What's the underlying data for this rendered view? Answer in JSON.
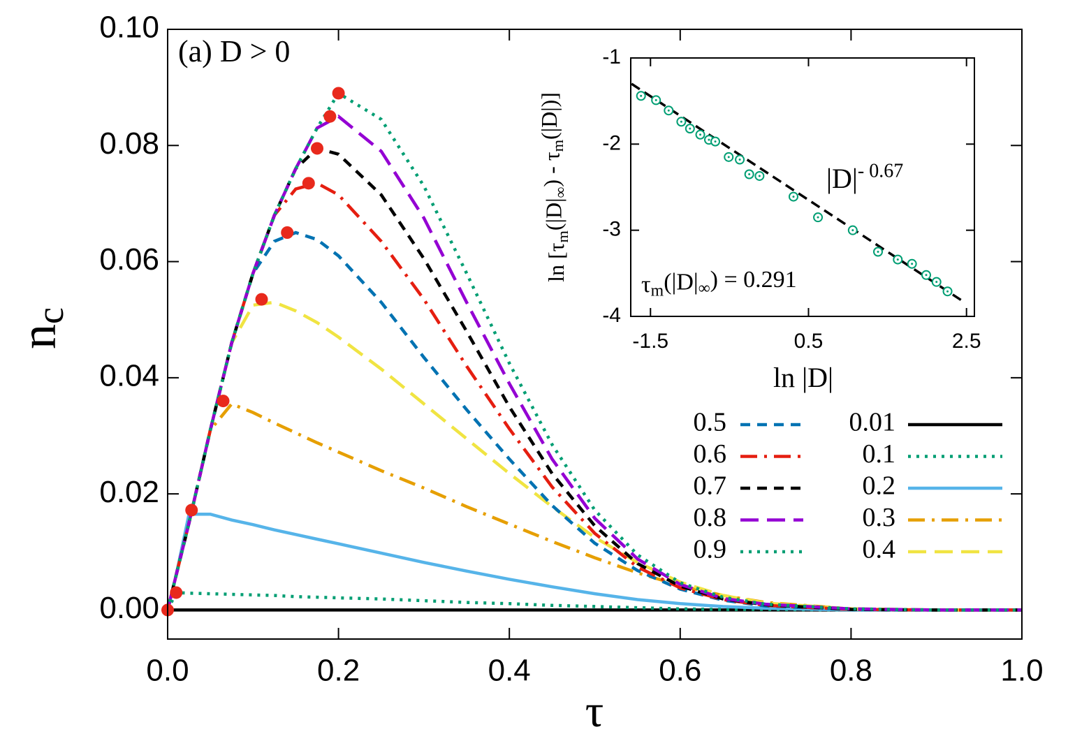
{
  "chart_data": [
    {
      "type": "line",
      "annotation": "(a) D > 0",
      "xlabel": "τ",
      "ylabel": "n",
      "ylabel_sub": "c",
      "x": [
        0,
        0.01,
        0.025,
        0.05,
        0.075,
        0.1,
        0.125,
        0.15,
        0.175,
        0.2,
        0.25,
        0.3,
        0.35,
        0.4,
        0.45,
        0.5,
        0.55,
        0.6,
        0.65,
        0.7,
        0.8,
        0.9,
        1.0
      ],
      "series": [
        {
          "name": "0.01",
          "color": "#000000",
          "dash": "solid",
          "values": [
            0,
            0,
            0,
            0,
            0,
            0,
            0,
            0,
            0,
            0,
            0,
            0,
            0,
            0,
            0,
            0,
            0,
            0,
            0,
            0,
            0,
            0,
            0
          ]
        },
        {
          "name": "0.1",
          "color": "#009e73",
          "dash": "dotted",
          "values": [
            0,
            0.003,
            0.0029,
            0.0028,
            0.0027,
            0.0026,
            0.0025,
            0.0023,
            0.0022,
            0.0021,
            0.0019,
            0.0016,
            0.0013,
            0.0011,
            0.0008,
            0.0006,
            0.0004,
            0.0002,
            0.0001,
            0.0001,
            0,
            0,
            0
          ]
        },
        {
          "name": "0.2",
          "color": "#56b4e9",
          "dash": "solid",
          "values": [
            0,
            0.006,
            0.0165,
            0.0165,
            0.0155,
            0.0147,
            0.0138,
            0.013,
            0.0122,
            0.0114,
            0.0098,
            0.0082,
            0.0067,
            0.0053,
            0.004,
            0.0028,
            0.0018,
            0.0011,
            0.0006,
            0.0003,
            0,
            0,
            0
          ]
        },
        {
          "name": "0.3",
          "color": "#e69f00",
          "dash": "dashdot",
          "values": [
            0,
            0.006,
            0.015,
            0.031,
            0.0355,
            0.034,
            0.0322,
            0.0305,
            0.0288,
            0.0272,
            0.024,
            0.021,
            0.0178,
            0.0148,
            0.0118,
            0.009,
            0.0064,
            0.0042,
            0.0025,
            0.0013,
            0.0002,
            0,
            0
          ]
        },
        {
          "name": "0.4",
          "color": "#f0e442",
          "dash": "longdash",
          "values": [
            0,
            0.006,
            0.015,
            0.031,
            0.046,
            0.0525,
            0.053,
            0.0515,
            0.0495,
            0.047,
            0.0415,
            0.0355,
            0.0295,
            0.0235,
            0.0178,
            0.0125,
            0.0082,
            0.0048,
            0.0025,
            0.0012,
            0.0002,
            0,
            0
          ]
        },
        {
          "name": "0.5",
          "color": "#0072b2",
          "dash": "dashed",
          "values": [
            0,
            0.006,
            0.015,
            0.031,
            0.046,
            0.058,
            0.0635,
            0.065,
            0.0638,
            0.061,
            0.053,
            0.0435,
            0.0345,
            0.026,
            0.018,
            0.0115,
            0.0068,
            0.0036,
            0.0017,
            0.0007,
            0.0001,
            0,
            0
          ]
        },
        {
          "name": "0.6",
          "color": "#e51e10",
          "dash": "dashdot",
          "values": [
            0,
            0.006,
            0.015,
            0.031,
            0.046,
            0.058,
            0.068,
            0.0725,
            0.0735,
            0.0715,
            0.0635,
            0.0535,
            0.042,
            0.0312,
            0.0212,
            0.0132,
            0.0074,
            0.0038,
            0.0018,
            0.0008,
            0.0001,
            0,
            0
          ]
        },
        {
          "name": "0.7",
          "color": "#000000",
          "dash": "dashed",
          "values": [
            0,
            0.006,
            0.015,
            0.031,
            0.046,
            0.058,
            0.068,
            0.076,
            0.0795,
            0.0785,
            0.0715,
            0.0605,
            0.048,
            0.035,
            0.0235,
            0.0145,
            0.008,
            0.0041,
            0.0019,
            0.0009,
            0.0001,
            0,
            0
          ]
        },
        {
          "name": "0.8",
          "color": "#9400d3",
          "dash": "longdash",
          "values": [
            0,
            0.006,
            0.015,
            0.031,
            0.046,
            0.058,
            0.068,
            0.076,
            0.083,
            0.085,
            0.079,
            0.0675,
            0.053,
            0.039,
            0.026,
            0.0158,
            0.0088,
            0.0044,
            0.002,
            0.001,
            0.0002,
            0,
            0
          ]
        },
        {
          "name": "0.9",
          "color": "#009e73",
          "dash": "dotted",
          "values": [
            0,
            0.006,
            0.015,
            0.031,
            0.046,
            0.058,
            0.068,
            0.076,
            0.083,
            0.089,
            0.0845,
            0.073,
            0.058,
            0.0425,
            0.0285,
            0.0172,
            0.0095,
            0.0047,
            0.0022,
            0.001,
            0.0002,
            0,
            0
          ]
        }
      ],
      "peaks": {
        "color": "#e8291c",
        "x": [
          0,
          0.01,
          0.028,
          0.065,
          0.11,
          0.14,
          0.165,
          0.175,
          0.19,
          0.2
        ],
        "y": [
          0,
          0.003,
          0.0172,
          0.036,
          0.0535,
          0.065,
          0.0735,
          0.0795,
          0.085,
          0.089
        ]
      },
      "xlim": [
        0,
        1
      ],
      "ylim": [
        -0.005,
        0.1
      ],
      "xticks": [
        {
          "value": 0,
          "label": "0.0"
        },
        0.2,
        0.4,
        0.6,
        0.8,
        {
          "value": 1,
          "label": "1.0"
        }
      ],
      "yticks": [
        {
          "value": 0,
          "label": "0.00"
        },
        0.02,
        0.04,
        0.06,
        0.08,
        {
          "value": 0.1,
          "label": "0.10"
        }
      ],
      "legend": "lower right"
    },
    {
      "type": "scatter",
      "xlabel": "ln |D|",
      "ylabel_parts": [
        "ln [τ",
        "m",
        "(|D|",
        "∞",
        ") - τ",
        "m",
        "(|D|)]"
      ],
      "annotation_parts": [
        "τ",
        "m",
        "(|D|",
        "∞",
        ") = 0.291"
      ],
      "fit_label_parts": [
        "|D|",
        "- 0.67"
      ],
      "color": "#009e73",
      "x": [
        -1.62,
        -1.43,
        -1.27,
        -1.11,
        -1.0,
        -0.87,
        -0.76,
        -0.68,
        -0.51,
        -0.37,
        -0.25,
        -0.12,
        0.31,
        0.62,
        1.06,
        1.38,
        1.63,
        1.81,
        1.99,
        2.12,
        2.26
      ],
      "y": [
        -1.44,
        -1.49,
        -1.61,
        -1.74,
        -1.82,
        -1.89,
        -1.95,
        -1.97,
        -2.15,
        -2.18,
        -2.35,
        -2.37,
        -2.61,
        -2.85,
        -3.0,
        -3.25,
        -3.34,
        -3.39,
        -3.52,
        -3.6,
        -3.71
      ],
      "fit": {
        "color": "#000000",
        "x": [
          -1.74,
          2.48
        ],
        "y": [
          -1.3,
          -3.84
        ]
      },
      "xlim": [
        -1.75,
        2.6
      ],
      "ylim": [
        -4,
        -1
      ],
      "xticks": [
        -1.5,
        0.5,
        2.5
      ],
      "yticks": [
        -1,
        -2,
        -3,
        -4
      ]
    }
  ]
}
